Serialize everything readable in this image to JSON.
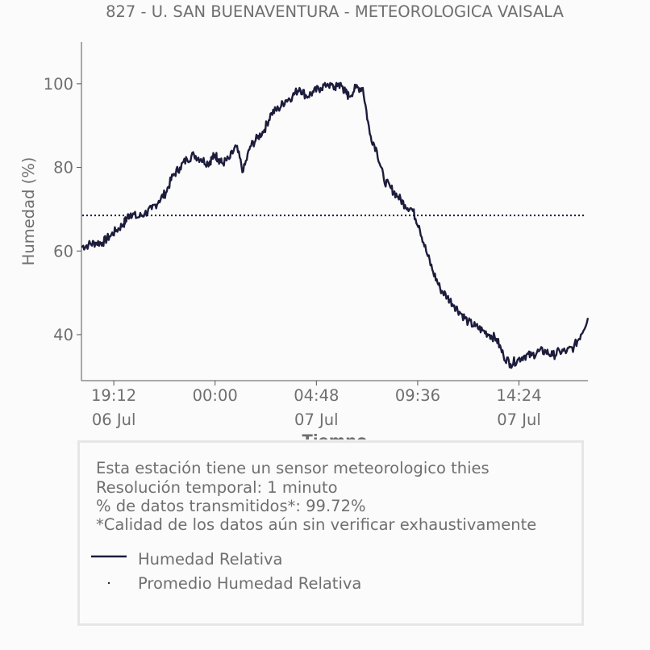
{
  "chart_data": {
    "type": "line",
    "title": "827 - U. SAN BUENAVENTURA - METEOROLOGICA VAISALA",
    "xlabel": "Tiempo",
    "ylabel": "Humedad (%)",
    "x_range": [
      "06 Jul 17:40",
      "07 Jul 17:40"
    ],
    "ylim": [
      29,
      110
    ],
    "x_ticks": [
      {
        "time": "19:12",
        "date": "06 Jul"
      },
      {
        "time": "00:00",
        "date": ""
      },
      {
        "time": "04:48",
        "date": "07 Jul"
      },
      {
        "time": "09:36",
        "date": ""
      },
      {
        "time": "14:24",
        "date": "07 Jul"
      }
    ],
    "y_ticks": [
      40,
      60,
      80,
      100
    ],
    "grid": false,
    "series": [
      {
        "name": "Humedad Relativa",
        "color": "#1c1c3c",
        "style": "solid",
        "x": [
          "06 Jul 17:40",
          "06 Jul 18:00",
          "06 Jul 18:20",
          "06 Jul 18:40",
          "06 Jul 19:00",
          "06 Jul 19:20",
          "06 Jul 19:40",
          "06 Jul 19:50",
          "06 Jul 20:00",
          "06 Jul 20:20",
          "06 Jul 20:40",
          "06 Jul 21:00",
          "06 Jul 21:20",
          "06 Jul 21:40",
          "06 Jul 22:00",
          "06 Jul 22:20",
          "06 Jul 22:40",
          "06 Jul 23:00",
          "06 Jul 23:20",
          "06 Jul 23:40",
          "06 Jul 23:50",
          "07 Jul 00:00",
          "07 Jul 00:10",
          "07 Jul 00:20",
          "07 Jul 00:40",
          "07 Jul 01:00",
          "07 Jul 01:20",
          "07 Jul 01:40",
          "07 Jul 02:00",
          "07 Jul 02:20",
          "07 Jul 02:40",
          "07 Jul 03:00",
          "07 Jul 03:20",
          "07 Jul 03:40",
          "07 Jul 04:00",
          "07 Jul 04:20",
          "07 Jul 04:40",
          "07 Jul 05:00",
          "07 Jul 05:20",
          "07 Jul 05:40",
          "07 Jul 05:50",
          "07 Jul 06:00",
          "07 Jul 06:10",
          "07 Jul 06:20",
          "07 Jul 06:40",
          "07 Jul 07:00",
          "07 Jul 07:20",
          "07 Jul 07:40",
          "07 Jul 08:00",
          "07 Jul 08:20",
          "07 Jul 08:40",
          "07 Jul 09:00",
          "07 Jul 09:20",
          "07 Jul 09:40",
          "07 Jul 10:00",
          "07 Jul 10:20",
          "07 Jul 10:40",
          "07 Jul 11:00",
          "07 Jul 11:20",
          "07 Jul 11:40",
          "07 Jul 12:00",
          "07 Jul 12:20",
          "07 Jul 12:40",
          "07 Jul 13:00",
          "07 Jul 13:20",
          "07 Jul 13:40",
          "07 Jul 14:00",
          "07 Jul 14:20",
          "07 Jul 14:40",
          "07 Jul 15:00",
          "07 Jul 15:20",
          "07 Jul 15:40",
          "07 Jul 16:00",
          "07 Jul 16:20",
          "07 Jul 16:40",
          "07 Jul 17:00",
          "07 Jul 17:20",
          "07 Jul 17:40"
        ],
        "y": [
          61,
          61.5,
          62,
          62,
          63.5,
          65,
          66.5,
          68,
          69,
          68,
          69,
          70,
          72,
          74,
          78,
          80,
          82,
          83,
          82,
          81,
          82,
          83,
          82,
          81,
          82,
          85,
          79,
          85,
          87,
          89,
          93,
          94,
          96,
          97,
          99,
          97,
          98,
          99,
          100,
          99,
          100,
          99.5,
          98,
          97,
          99,
          99,
          88,
          84,
          77,
          75,
          73,
          71,
          70,
          66,
          60,
          55,
          51,
          49,
          47,
          45,
          43,
          42,
          41,
          40,
          39,
          35,
          33,
          34,
          35,
          35,
          36,
          36,
          35,
          36,
          36,
          37,
          40,
          44
        ]
      },
      {
        "name": "Promedio Humedad Relativa",
        "color": "#1c1c3c",
        "style": "dotted",
        "y_constant": 68.5
      }
    ],
    "legend": {
      "placement": "bottom",
      "entries": [
        "Humedad Relativa",
        "Promedio Humedad Relativa"
      ]
    }
  },
  "notes": {
    "sensor": "Esta estación tiene un sensor meteorologico thies",
    "resolution": "Resolución temporal: 1 minuto",
    "transmitted": "% de datos transmitidos*: 99.72%",
    "quality": "*Calidad de los datos aún sin verificar exhaustivamente"
  },
  "colors": {
    "text": "#6f6f6f",
    "line": "#1c1c3c",
    "axis": "#555555",
    "box_border": "#e6e6e6"
  }
}
